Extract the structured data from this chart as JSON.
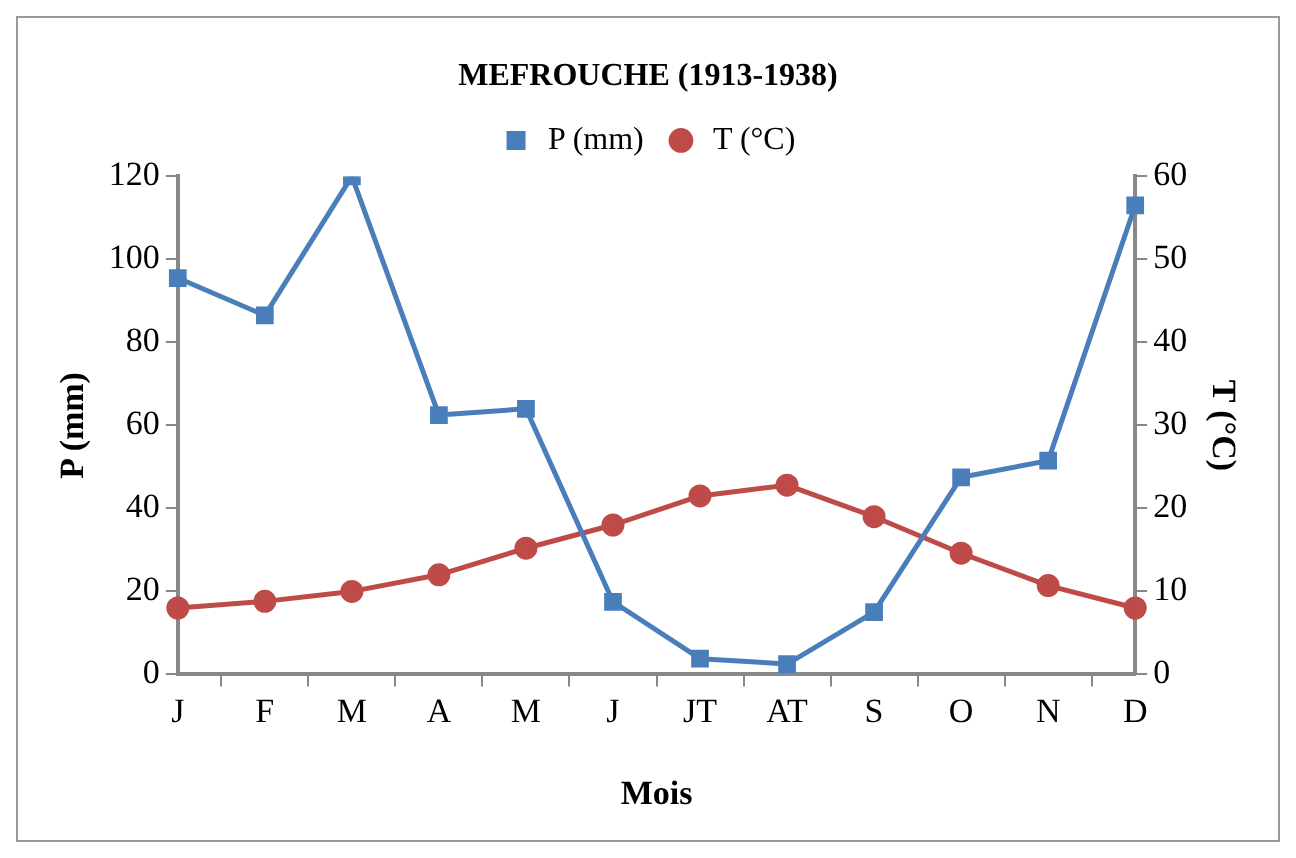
{
  "chart_data": {
    "type": "line",
    "title": "MEFROUCHE (1913-1938)",
    "xlabel": "Mois",
    "ylabel": "P (mm)",
    "y2label": "T (°C)",
    "categories": [
      "J",
      "F",
      "M",
      "A",
      "M",
      "J",
      "JT",
      "AT",
      "S",
      "O",
      "N",
      "D"
    ],
    "series": [
      {
        "name": "P (mm)",
        "color": "#4a7ebb",
        "marker": "square",
        "values": [
          95.5,
          86.5,
          120,
          62.5,
          64,
          17.5,
          3.8,
          2.5,
          15,
          47.5,
          51.5,
          113
        ]
      },
      {
        "name": "T (°C)",
        "color": "#be4b48",
        "marker": "circle",
        "axis": "y2",
        "values": [
          8,
          8.8,
          10,
          12,
          15.2,
          18,
          21.5,
          22.8,
          19,
          14.6,
          10.7,
          8
        ]
      }
    ],
    "ylim": [
      0,
      120
    ],
    "yticks": [
      0,
      20,
      40,
      60,
      80,
      100,
      120
    ],
    "y2lim": [
      0,
      60
    ],
    "y2ticks": [
      0,
      10,
      20,
      30,
      40,
      50,
      60
    ],
    "grid": false,
    "legend": "top",
    "line_style": "solid"
  }
}
